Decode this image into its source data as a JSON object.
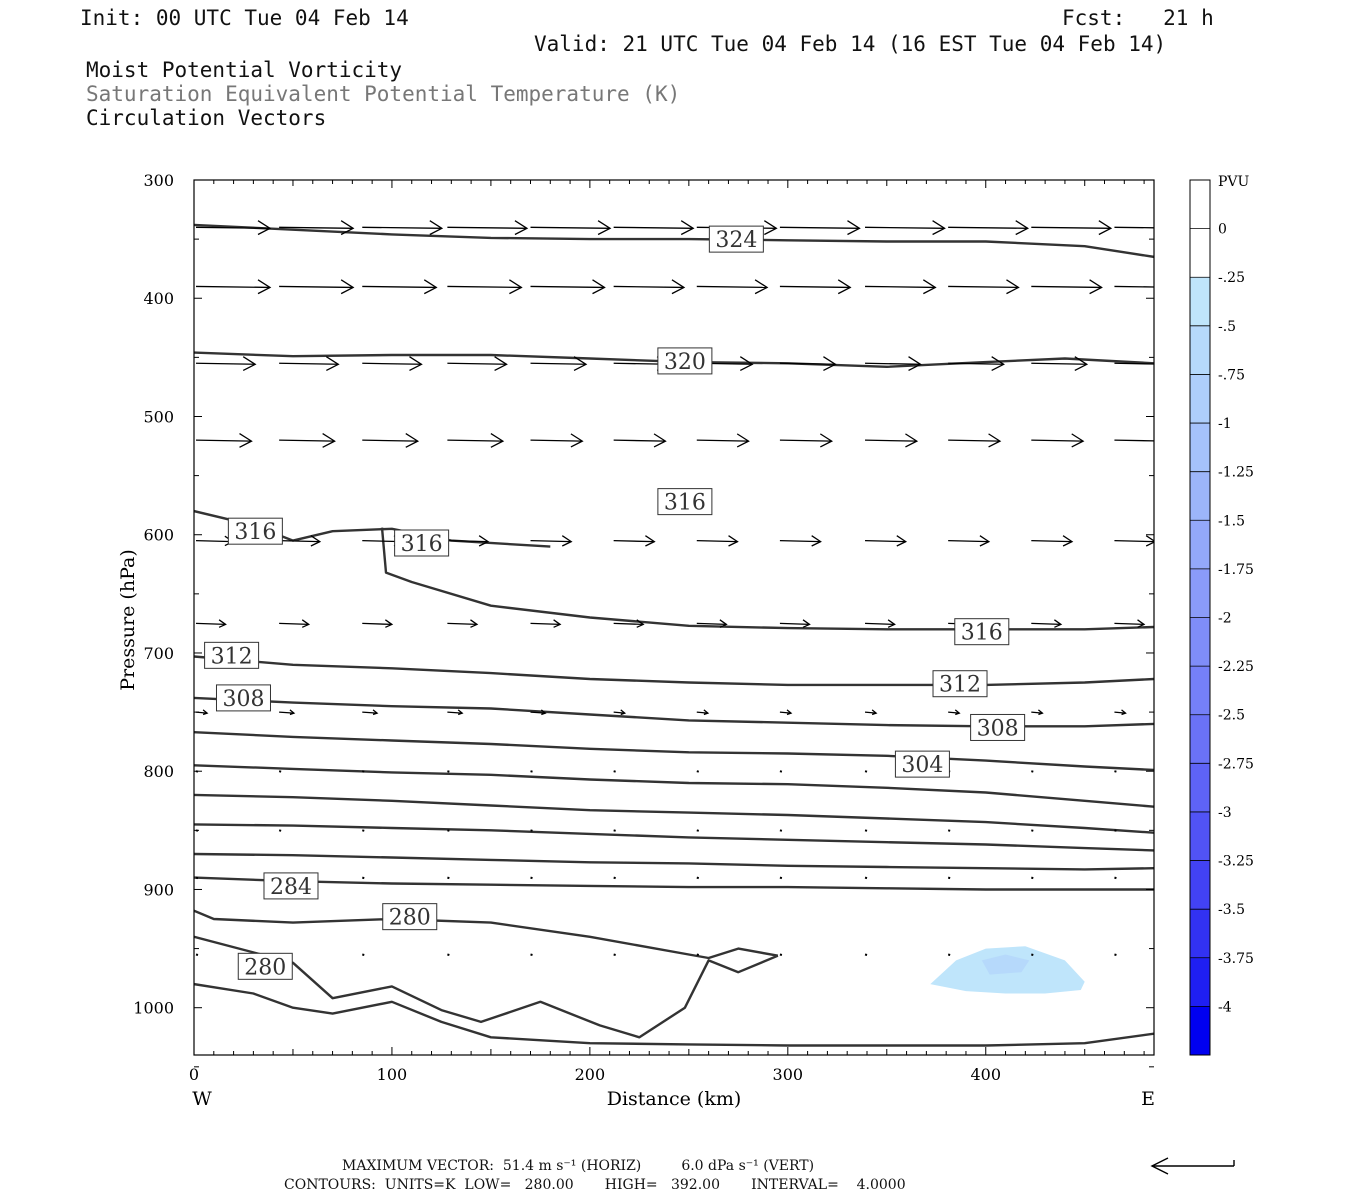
{
  "header": {
    "init": "Init: 00 UTC Tue 04 Feb 14",
    "fcst": "Fcst:   21 h",
    "valid": "Valid: 21 UTC Tue 04 Feb 14 (16 EST Tue 04 Feb 14)",
    "field1": "Moist Potential Vorticity",
    "field2": "Saturation Equivalent Potential Temperature (K)",
    "field3": "Circulation Vectors"
  },
  "colors": {
    "field2_text": "#777777",
    "contour": "#333333",
    "frame": "#000000"
  },
  "footer": {
    "max_vector": "MAXIMUM VECTOR:  51.4 m s⁻¹ (HORIZ)         6.0 dPa s⁻¹ (VERT)",
    "contours": "CONTOURS:  UNITS=K  LOW=   280.00       HIGH=   392.00       INTERVAL=    4.0000",
    "ref_arrow_icon": "reference-vector-arrow"
  },
  "chart_data": {
    "type": "contour",
    "xlabel": "Distance (km)",
    "ylabel": "Pressure (hPa)",
    "xlim": [
      0,
      485
    ],
    "ylim": [
      1040,
      300
    ],
    "xticks": [
      "0",
      "100",
      "200",
      "300",
      "400"
    ],
    "yticks": [
      "300",
      "400",
      "500",
      "600",
      "700",
      "800",
      "900",
      "1000"
    ],
    "x_left_label": "W",
    "x_right_label": "E",
    "colorbar": {
      "title": "PVU",
      "labels": [
        "0",
        "-.25",
        "-.5",
        "-.75",
        "-1",
        "-1.25",
        "-1.5",
        "-1.75",
        "-2",
        "-2.25",
        "-2.5",
        "-2.75",
        "-3",
        "-3.25",
        "-3.5",
        "-3.75",
        "-4"
      ],
      "colors": [
        "#ffffff",
        "#ffffff",
        "#bfe5fb",
        "#b6d9fb",
        "#aecefb",
        "#a5c2fb",
        "#9cb5fa",
        "#93a8fa",
        "#8a9bf9",
        "#7f8df8",
        "#7580f8",
        "#6a72f7",
        "#5e63f6",
        "#5153f5",
        "#4242f4",
        "#3232f3",
        "#1f1ff2",
        "#0000f0"
      ]
    },
    "contour_labels": [
      {
        "text": "324",
        "x": 274,
        "p": 350
      },
      {
        "text": "320",
        "x": 248,
        "p": 453
      },
      {
        "text": "316",
        "x": 248,
        "p": 572
      },
      {
        "text": "316",
        "x": 31,
        "p": 597
      },
      {
        "text": "316",
        "x": 115,
        "p": 607
      },
      {
        "text": "316",
        "x": 398,
        "p": 682
      },
      {
        "text": "312",
        "x": 19,
        "p": 702
      },
      {
        "text": "312",
        "x": 387,
        "p": 726
      },
      {
        "text": "308",
        "x": 25,
        "p": 738
      },
      {
        "text": "308",
        "x": 406,
        "p": 763
      },
      {
        "text": "304",
        "x": 368,
        "p": 794
      },
      {
        "text": "284",
        "x": 49,
        "p": 897
      },
      {
        "text": "280",
        "x": 109,
        "p": 923
      },
      {
        "text": "280",
        "x": 36,
        "p": 965
      }
    ],
    "contours": [
      {
        "x": [
          0,
          50,
          100,
          150,
          200,
          250,
          300,
          350,
          400,
          450,
          485
        ],
        "p": [
          338,
          342,
          346,
          349,
          350,
          350,
          351,
          352,
          352,
          356,
          365
        ]
      },
      {
        "x": [
          0,
          50,
          100,
          150,
          200,
          250,
          300,
          350,
          400,
          440,
          485
        ],
        "p": [
          446,
          449,
          448,
          448,
          451,
          454,
          455,
          458,
          454,
          451,
          455
        ]
      },
      {
        "x": [
          0,
          30,
          50,
          70,
          100,
          130,
          180
        ],
        "p": [
          580,
          592,
          605,
          597,
          595,
          605,
          610
        ]
      },
      {
        "x": [
          95,
          97,
          110,
          150,
          200,
          250,
          300,
          350,
          400,
          450,
          485
        ],
        "p": [
          594,
          632,
          640,
          660,
          670,
          677,
          679,
          680,
          680,
          680,
          678
        ]
      },
      {
        "x": [
          0,
          50,
          100,
          150,
          200,
          250,
          300,
          350,
          400,
          450,
          485
        ],
        "p": [
          703,
          710,
          713,
          717,
          722,
          725,
          727,
          727,
          727,
          725,
          722
        ]
      },
      {
        "x": [
          0,
          50,
          100,
          150,
          200,
          250,
          300,
          350,
          400,
          450,
          485
        ],
        "p": [
          738,
          742,
          745,
          747,
          752,
          757,
          759,
          761,
          762,
          762,
          760
        ]
      },
      {
        "x": [
          0,
          50,
          100,
          150,
          200,
          250,
          300,
          350,
          400,
          450,
          485
        ],
        "p": [
          767,
          771,
          774,
          777,
          781,
          784,
          785,
          787,
          791,
          796,
          799
        ]
      },
      {
        "x": [
          0,
          50,
          100,
          150,
          200,
          250,
          300,
          350,
          400,
          450,
          485
        ],
        "p": [
          795,
          798,
          801,
          803,
          807,
          810,
          811,
          814,
          818,
          825,
          830
        ]
      },
      {
        "x": [
          0,
          50,
          100,
          150,
          200,
          250,
          300,
          350,
          400,
          450,
          485
        ],
        "p": [
          820,
          822,
          825,
          829,
          833,
          835,
          837,
          840,
          843,
          848,
          852
        ]
      },
      {
        "x": [
          0,
          50,
          100,
          150,
          200,
          250,
          300,
          350,
          400,
          450,
          485
        ],
        "p": [
          845,
          846,
          848,
          850,
          853,
          856,
          858,
          860,
          862,
          865,
          867
        ]
      },
      {
        "x": [
          0,
          50,
          100,
          150,
          200,
          250,
          300,
          350,
          400,
          450,
          485
        ],
        "p": [
          870,
          871,
          873,
          875,
          877,
          878,
          880,
          881,
          882,
          883,
          882
        ]
      },
      {
        "x": [
          0,
          50,
          100,
          150,
          200,
          250,
          300,
          350,
          400,
          450,
          485
        ],
        "p": [
          890,
          893,
          895,
          896,
          897,
          898,
          898,
          899,
          900,
          900,
          900
        ]
      },
      {
        "x": [
          0,
          10,
          50,
          100,
          150,
          200,
          250,
          260,
          275,
          295
        ],
        "p": [
          918,
          925,
          928,
          925,
          928,
          940,
          955,
          958,
          950,
          956
        ]
      },
      {
        "x": [
          0,
          50,
          70,
          100,
          125,
          145,
          175,
          205,
          225,
          248,
          260,
          275,
          295
        ],
        "p": [
          940,
          962,
          992,
          982,
          1002,
          1012,
          995,
          1015,
          1025,
          1000,
          960,
          970,
          956
        ]
      },
      {
        "x": [
          0,
          30,
          50,
          70,
          100,
          125,
          150,
          200,
          250,
          300,
          350,
          400,
          450,
          485
        ],
        "p": [
          980,
          988,
          1000,
          1005,
          995,
          1012,
          1025,
          1030,
          1031,
          1032,
          1032,
          1032,
          1030,
          1022
        ]
      }
    ],
    "pv_shading": [
      {
        "level": "-.25",
        "x": [
          372,
          385,
          400,
          420,
          440,
          450,
          448,
          430,
          410,
          390,
          372
        ],
        "p": [
          980,
          960,
          950,
          948,
          960,
          978,
          985,
          988,
          988,
          986,
          980
        ]
      },
      {
        "level": "-.5",
        "x": [
          398,
          410,
          422,
          418,
          402,
          398
        ],
        "p": [
          960,
          955,
          960,
          970,
          972,
          960
        ]
      }
    ],
    "vectors": {
      "p_levels": [
        340,
        390,
        455,
        520,
        605,
        675,
        750,
        800,
        850,
        890,
        955
      ],
      "x_positions": [
        0,
        42,
        84,
        127,
        169,
        211,
        253,
        295,
        338,
        380,
        422,
        464
      ],
      "u": [
        [
          40,
          40,
          43,
          43,
          43,
          43,
          43,
          43,
          43,
          43,
          43,
          43
        ],
        [
          40,
          40,
          40,
          40,
          40,
          38,
          38,
          38,
          38,
          38,
          38,
          38
        ],
        [
          32,
          32,
          32,
          32,
          30,
          30,
          30,
          30,
          30,
          30,
          30,
          30
        ],
        [
          30,
          30,
          30,
          30,
          28,
          28,
          28,
          28,
          28,
          28,
          28,
          28
        ],
        [
          20,
          22,
          22,
          22,
          22,
          22,
          22,
          22,
          22,
          22,
          22,
          22
        ],
        [
          16,
          16,
          16,
          16,
          16,
          16,
          16,
          16,
          16,
          16,
          16,
          16
        ],
        [
          6,
          8,
          8,
          8,
          8,
          6,
          6,
          6,
          6,
          6,
          6,
          6
        ],
        [
          2,
          2,
          2,
          2,
          2,
          2,
          2,
          2,
          2,
          2,
          2,
          2
        ],
        [
          1,
          1,
          1,
          1,
          1,
          1,
          1,
          1,
          1,
          1,
          1,
          1
        ],
        [
          1,
          1,
          1,
          1,
          1,
          1,
          1,
          1,
          1,
          1,
          1,
          1
        ],
        [
          1,
          1,
          1,
          1,
          1,
          1,
          1,
          1,
          1,
          1,
          1,
          1
        ]
      ]
    }
  }
}
